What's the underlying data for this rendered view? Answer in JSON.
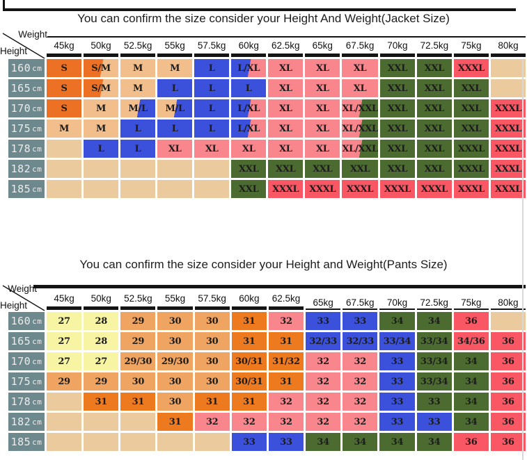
{
  "palette": {
    "orange": "#ED7124",
    "tan": "#F2BE8C",
    "blue": "#3B50DB",
    "pink": "#F9868D",
    "green": "#4C6B31",
    "red": "#FA5765",
    "empty": "#EBCB9D",
    "yellow": "#F7F4A3",
    "peach": "#EFA462",
    "orange2": "#EE7A1F",
    "header_bg": "#6E898D",
    "line": "#141414"
  },
  "chart_data": [
    {
      "type": "table",
      "id": "jacket",
      "title": "You can confirm the size consider  your Height And Weight(Jacket Size)",
      "corner": {
        "weight_label": "Weight",
        "height_label": "Height"
      },
      "row_unit": "cm",
      "columns": [
        {
          "label": "45kg",
          "underline": "thick"
        },
        {
          "label": "50kg",
          "underline": "thick"
        },
        {
          "label": "52.5kg",
          "underline": "thick"
        },
        {
          "label": "55kg",
          "underline": "thick"
        },
        {
          "label": "57.5kg",
          "underline": "thick"
        },
        {
          "label": "60kg",
          "underline": "thick"
        },
        {
          "label": "62.5kg",
          "underline": "thick"
        },
        {
          "label": "65kg",
          "underline": "thick"
        },
        {
          "label": "67.5kg",
          "underline": "thick"
        },
        {
          "label": "70kg",
          "underline": "thick"
        },
        {
          "label": "72.5kg",
          "underline": "thick"
        },
        {
          "label": "75kg",
          "underline": "thick"
        },
        {
          "label": "80kg",
          "underline": "thick"
        }
      ],
      "rows": [
        {
          "height": "160",
          "cells": [
            [
              "S",
              "orange"
            ],
            [
              "S/M",
              "orange",
              "tan"
            ],
            [
              "M",
              "tan"
            ],
            [
              "M",
              "tan"
            ],
            [
              "L",
              "blue"
            ],
            [
              "L/XL",
              "blue",
              "pink"
            ],
            [
              "XL",
              "pink"
            ],
            [
              "XL",
              "pink"
            ],
            [
              "XL",
              "pink"
            ],
            [
              "XXL",
              "green"
            ],
            [
              "XXL",
              "green"
            ],
            [
              "XXXL",
              "red"
            ],
            [
              "",
              "empty"
            ]
          ]
        },
        {
          "height": "165",
          "cells": [
            [
              "S",
              "orange"
            ],
            [
              "S/M",
              "orange",
              "tan"
            ],
            [
              "M",
              "tan"
            ],
            [
              "L",
              "blue"
            ],
            [
              "L",
              "blue"
            ],
            [
              "L",
              "blue"
            ],
            [
              "XL",
              "pink"
            ],
            [
              "XL",
              "pink"
            ],
            [
              "XL",
              "pink"
            ],
            [
              "XXL",
              "green"
            ],
            [
              "XXL",
              "green"
            ],
            [
              "XXL",
              "green"
            ],
            [
              "",
              "empty"
            ]
          ]
        },
        {
          "height": "170",
          "cells": [
            [
              "S",
              "orange"
            ],
            [
              "M",
              "tan"
            ],
            [
              "M/L",
              "tan",
              "blue"
            ],
            [
              "M/L",
              "tan",
              "blue"
            ],
            [
              "L",
              "blue"
            ],
            [
              "L/XL",
              "blue",
              "pink"
            ],
            [
              "XL",
              "pink"
            ],
            [
              "XL",
              "pink"
            ],
            [
              "XL/XXL",
              "pink",
              "green"
            ],
            [
              "XXL",
              "green"
            ],
            [
              "XXL",
              "green"
            ],
            [
              "XXL",
              "green"
            ],
            [
              "XXXL",
              "red"
            ]
          ]
        },
        {
          "height": "175",
          "cells": [
            [
              "M",
              "tan"
            ],
            [
              "M",
              "tan"
            ],
            [
              "L",
              "blue"
            ],
            [
              "L",
              "blue"
            ],
            [
              "L",
              "blue"
            ],
            [
              "L/XL",
              "blue",
              "pink"
            ],
            [
              "XL",
              "pink"
            ],
            [
              "XL",
              "pink"
            ],
            [
              "XL/XXL",
              "pink",
              "green"
            ],
            [
              "XXL",
              "green"
            ],
            [
              "XXL",
              "green"
            ],
            [
              "XXL",
              "green"
            ],
            [
              "XXXL",
              "red"
            ]
          ]
        },
        {
          "height": "178",
          "cells": [
            [
              "",
              "empty"
            ],
            [
              "L",
              "blue"
            ],
            [
              "L",
              "blue"
            ],
            [
              "XL",
              "pink"
            ],
            [
              "XL",
              "pink"
            ],
            [
              "XL",
              "pink"
            ],
            [
              "XL",
              "pink"
            ],
            [
              "XL",
              "pink"
            ],
            [
              "XL/XXL",
              "pink",
              "green"
            ],
            [
              "XXL",
              "green"
            ],
            [
              "XXL",
              "green"
            ],
            [
              "XXXL",
              "green"
            ],
            [
              "XXXL",
              "red"
            ]
          ]
        },
        {
          "height": "182",
          "cells": [
            [
              "",
              "empty"
            ],
            [
              "",
              "empty"
            ],
            [
              "",
              "empty"
            ],
            [
              "",
              "empty"
            ],
            [
              "",
              "empty"
            ],
            [
              "XXL",
              "green"
            ],
            [
              "XXL",
              "green"
            ],
            [
              "XXL",
              "green"
            ],
            [
              "XXL",
              "green"
            ],
            [
              "XXL",
              "green"
            ],
            [
              "XXL",
              "green"
            ],
            [
              "XXXL",
              "green"
            ],
            [
              "XXXL",
              "red"
            ]
          ]
        },
        {
          "height": "185",
          "cells": [
            [
              "",
              "empty"
            ],
            [
              "",
              "empty"
            ],
            [
              "",
              "empty"
            ],
            [
              "",
              "empty"
            ],
            [
              "",
              "empty"
            ],
            [
              "XXL",
              "green"
            ],
            [
              "XXXL",
              "red"
            ],
            [
              "XXXL",
              "red"
            ],
            [
              "XXXL",
              "red"
            ],
            [
              "XXXL",
              "red"
            ],
            [
              "XXXL",
              "red"
            ],
            [
              "XXXL",
              "red"
            ],
            [
              "XXXL",
              "red"
            ]
          ]
        }
      ]
    },
    {
      "type": "table",
      "id": "pants",
      "title": "You can confirm the size consider your Height and Weight(Pants Size)",
      "corner": {
        "weight_label": "Weight",
        "height_label": "Height"
      },
      "row_unit": "cm",
      "columns": [
        {
          "label": "45kg",
          "underline": "thick"
        },
        {
          "label": "50kg",
          "underline": "thick"
        },
        {
          "label": "52.5kg",
          "underline": "thick"
        },
        {
          "label": "55kg",
          "underline": "thick"
        },
        {
          "label": "57.5kg",
          "underline": "thick"
        },
        {
          "label": "60kg",
          "underline": "thick"
        },
        {
          "label": "62.5kg",
          "underline": "thick"
        },
        {
          "label": "65kg",
          "underline": "thin"
        },
        {
          "label": "67.5kg",
          "underline": "thin"
        },
        {
          "label": "70kg",
          "underline": "thin"
        },
        {
          "label": "72.5kg",
          "underline": "thin"
        },
        {
          "label": "75kg",
          "underline": "thin"
        },
        {
          "label": "80kg",
          "underline": "thin"
        }
      ],
      "rows": [
        {
          "height": "160",
          "cells": [
            [
              "27",
              "yellow"
            ],
            [
              "28",
              "yellow"
            ],
            [
              "29",
              "peach"
            ],
            [
              "30",
              "peach"
            ],
            [
              "30",
              "peach"
            ],
            [
              "31",
              "orange2"
            ],
            [
              "32",
              "pink"
            ],
            [
              "33",
              "blue"
            ],
            [
              "33",
              "blue"
            ],
            [
              "34",
              "green"
            ],
            [
              "34",
              "green"
            ],
            [
              "36",
              "red"
            ],
            [
              "",
              "empty"
            ]
          ]
        },
        {
          "height": "165",
          "cells": [
            [
              "27",
              "yellow"
            ],
            [
              "28",
              "yellow"
            ],
            [
              "29",
              "peach"
            ],
            [
              "30",
              "peach"
            ],
            [
              "30",
              "peach"
            ],
            [
              "31",
              "orange2"
            ],
            [
              "31",
              "orange2"
            ],
            [
              "32/33",
              "blue"
            ],
            [
              "32/33",
              "blue"
            ],
            [
              "33/34",
              "blue"
            ],
            [
              "33/34",
              "green"
            ],
            [
              "34/36",
              "red"
            ],
            [
              "36",
              "red"
            ]
          ]
        },
        {
          "height": "170",
          "cells": [
            [
              "27",
              "yellow"
            ],
            [
              "27",
              "yellow"
            ],
            [
              "29/30",
              "peach"
            ],
            [
              "29/30",
              "peach"
            ],
            [
              "30",
              "peach"
            ],
            [
              "30/31",
              "orange2"
            ],
            [
              "31/32",
              "orange2"
            ],
            [
              "32",
              "pink"
            ],
            [
              "32",
              "pink"
            ],
            [
              "33",
              "blue"
            ],
            [
              "33/34",
              "green"
            ],
            [
              "34",
              "green"
            ],
            [
              "36",
              "red"
            ]
          ]
        },
        {
          "height": "175",
          "cells": [
            [
              "29",
              "peach"
            ],
            [
              "29",
              "peach"
            ],
            [
              "30",
              "peach"
            ],
            [
              "30",
              "peach"
            ],
            [
              "30",
              "peach"
            ],
            [
              "30/31",
              "orange2"
            ],
            [
              "31",
              "orange2"
            ],
            [
              "32",
              "pink"
            ],
            [
              "32",
              "pink"
            ],
            [
              "33",
              "blue"
            ],
            [
              "33/34",
              "green"
            ],
            [
              "34",
              "green"
            ],
            [
              "36",
              "red"
            ]
          ]
        },
        {
          "height": "178",
          "cells": [
            [
              "",
              "empty"
            ],
            [
              "31",
              "orange2"
            ],
            [
              "31",
              "orange2"
            ],
            [
              "30",
              "peach"
            ],
            [
              "31",
              "orange2"
            ],
            [
              "31",
              "orange2"
            ],
            [
              "32",
              "pink"
            ],
            [
              "32",
              "pink"
            ],
            [
              "32",
              "pink"
            ],
            [
              "33",
              "blue"
            ],
            [
              "33",
              "green"
            ],
            [
              "34",
              "green"
            ],
            [
              "36",
              "red"
            ]
          ]
        },
        {
          "height": "182",
          "cells": [
            [
              "",
              "empty"
            ],
            [
              "",
              "empty"
            ],
            [
              "",
              "empty"
            ],
            [
              "31",
              "orange2"
            ],
            [
              "32",
              "pink"
            ],
            [
              "32",
              "pink"
            ],
            [
              "32",
              "pink"
            ],
            [
              "32",
              "pink"
            ],
            [
              "32",
              "pink"
            ],
            [
              "33",
              "blue"
            ],
            [
              "33",
              "blue"
            ],
            [
              "34",
              "green"
            ],
            [
              "36",
              "red"
            ]
          ]
        },
        {
          "height": "185",
          "cells": [
            [
              "",
              "empty"
            ],
            [
              "",
              "empty"
            ],
            [
              "",
              "empty"
            ],
            [
              "",
              "empty"
            ],
            [
              "",
              "empty"
            ],
            [
              "33",
              "blue"
            ],
            [
              "33",
              "blue"
            ],
            [
              "34",
              "green"
            ],
            [
              "34",
              "green"
            ],
            [
              "34",
              "green"
            ],
            [
              "34",
              "green"
            ],
            [
              "36",
              "red"
            ],
            [
              "36",
              "red"
            ]
          ]
        }
      ]
    }
  ]
}
